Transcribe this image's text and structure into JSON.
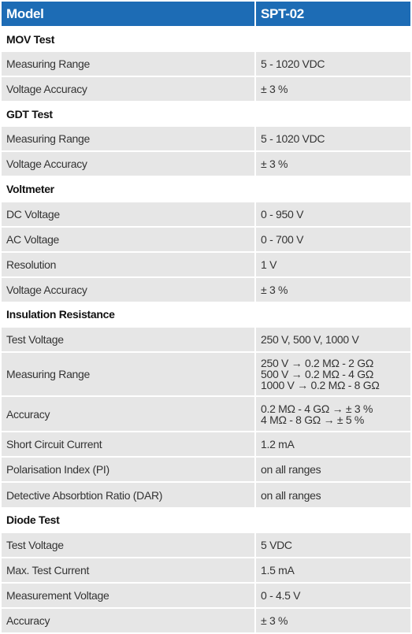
{
  "header": {
    "model": "Model",
    "product": "SPT-02"
  },
  "sections": [
    {
      "title": "MOV Test",
      "rows": [
        [
          "Measuring Range",
          "5 - 1020 VDC"
        ],
        [
          "Voltage Accuracy",
          "± 3 %"
        ]
      ]
    },
    {
      "title": "GDT Test",
      "rows": [
        [
          "Measuring Range",
          "5 - 1020 VDC"
        ],
        [
          "Voltage Accuracy",
          "± 3 %"
        ]
      ]
    },
    {
      "title": "Voltmeter",
      "rows": [
        [
          "DC Voltage",
          "0 - 950 V"
        ],
        [
          "AC Voltage",
          "0 - 700 V"
        ],
        [
          "Resolution",
          "1 V"
        ],
        [
          "Voltage Accuracy",
          "± 3 %"
        ]
      ]
    },
    {
      "title": "Insulation Resistance",
      "rows": [
        [
          "Test Voltage",
          "250 V, 500 V, 1000 V"
        ],
        [
          "Measuring Range",
          [
            "250 V → 0.2 MΩ - 2 GΩ",
            "500 V → 0.2 MΩ - 4 GΩ",
            "1000 V → 0.2 MΩ - 8 GΩ"
          ]
        ],
        [
          "Accuracy",
          [
            "0.2 MΩ - 4 GΩ → ± 3 %",
            "4 MΩ - 8 GΩ → ± 5 %"
          ]
        ],
        [
          "Short Circuit Current",
          "1.2 mA"
        ],
        [
          "Polarisation Index (PI)",
          "on all ranges"
        ],
        [
          "Detective Absorbtion Ratio (DAR)",
          "on all ranges"
        ]
      ]
    },
    {
      "title": "Diode Test",
      "rows": [
        [
          "Test Voltage",
          "5 VDC"
        ],
        [
          "Max. Test Current",
          "1.5 mA"
        ],
        [
          "Measurement Voltage",
          "0 - 4.5 V"
        ],
        [
          "Accuracy",
          "± 3 %"
        ]
      ]
    }
  ]
}
